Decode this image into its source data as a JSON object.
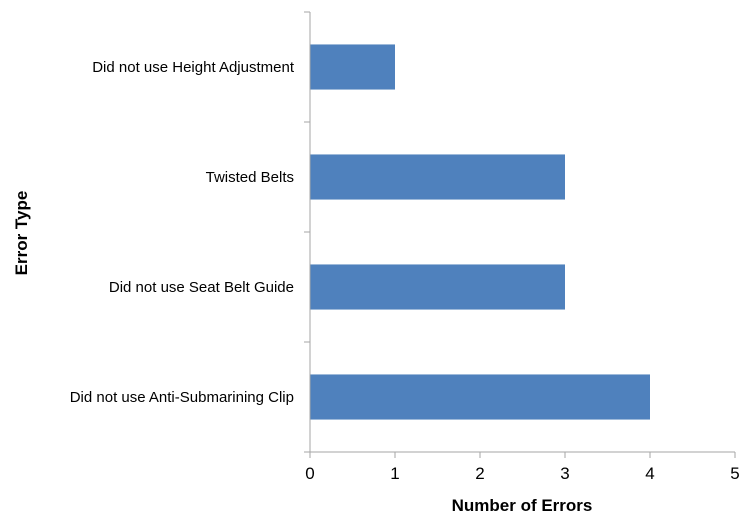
{
  "chart_data": {
    "type": "bar",
    "orientation": "horizontal",
    "categories": [
      "Did not use Height Adjustment",
      "Twisted Belts",
      "Did not use Seat Belt Guide",
      "Did not use Anti-Submarining Clip"
    ],
    "values": [
      1,
      3,
      3,
      4
    ],
    "xlabel": "Number of Errors",
    "ylabel": "Error Type",
    "xlim": [
      0,
      5
    ],
    "xticks": [
      "0",
      "1",
      "2",
      "3",
      "4",
      "5"
    ],
    "grid": false,
    "legend": "none",
    "bar_color": "#4f81bd",
    "axis_color": "#a6a6a6"
  }
}
